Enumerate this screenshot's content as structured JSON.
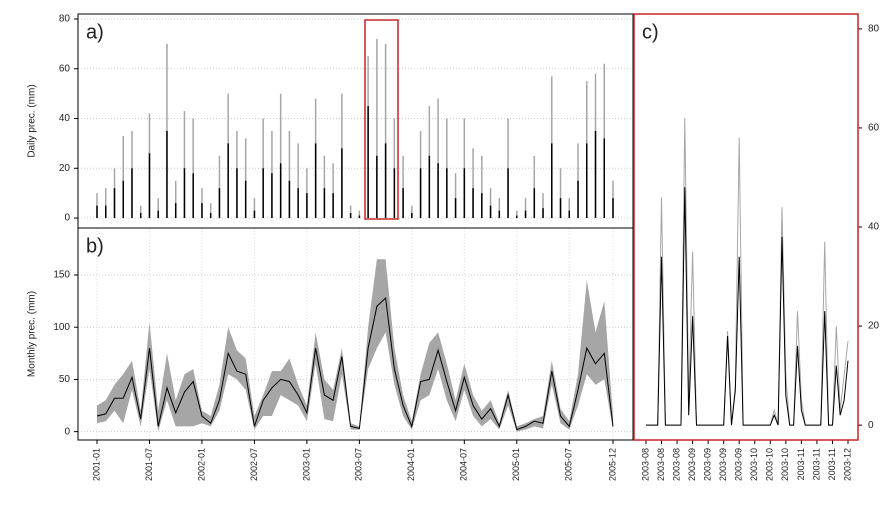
{
  "chart_data": [
    {
      "type": "spikes",
      "label": "a)",
      "ylabel": "Daily prec. (mm)",
      "categories": [
        null,
        null,
        null,
        null,
        null,
        null,
        null,
        null,
        null,
        null,
        null,
        null,
        null,
        null,
        null,
        null,
        null,
        null,
        null,
        null,
        null,
        null,
        null,
        null,
        null,
        null,
        null,
        null,
        null,
        null,
        null,
        null,
        null,
        null,
        null,
        null,
        null,
        null,
        null,
        null,
        null,
        null,
        null,
        null,
        null,
        null,
        null,
        null,
        null,
        null,
        null,
        null,
        null,
        null,
        null,
        null,
        null,
        null,
        null,
        null
      ],
      "series": [
        {
          "color": "#a6a6a6",
          "values": [
            10,
            12,
            20,
            33,
            35,
            5,
            42,
            8,
            70,
            15,
            43,
            40,
            12,
            6,
            25,
            50,
            35,
            32,
            8,
            40,
            35,
            50,
            35,
            30,
            20,
            48,
            25,
            22,
            50,
            5,
            3,
            65,
            72,
            70,
            40,
            25,
            5,
            35,
            45,
            48,
            40,
            18,
            40,
            28,
            25,
            12,
            8,
            40,
            3,
            8,
            25,
            10,
            57,
            20,
            8,
            30,
            55,
            58,
            62,
            15
          ]
        },
        {
          "color": "#000000",
          "values": [
            5,
            5,
            12,
            15,
            20,
            2,
            26,
            3,
            35,
            6,
            20,
            18,
            6,
            2,
            12,
            30,
            20,
            15,
            3,
            20,
            18,
            22,
            15,
            12,
            10,
            30,
            12,
            10,
            28,
            2,
            1,
            45,
            25,
            30,
            20,
            12,
            2,
            20,
            25,
            22,
            20,
            8,
            20,
            12,
            10,
            5,
            3,
            20,
            1,
            3,
            12,
            4,
            30,
            8,
            3,
            15,
            30,
            35,
            32,
            8
          ]
        }
      ],
      "ylim": [
        -4,
        82
      ],
      "yticks": [
        0,
        20,
        40,
        60,
        80
      ],
      "grid": true,
      "y_axis_side": "left"
    },
    {
      "type": "band-line",
      "label": "b)",
      "ylabel": "Monthly prec. (mm)",
      "categories": [
        "2001-01",
        null,
        null,
        null,
        null,
        null,
        "2001-07",
        null,
        null,
        null,
        null,
        null,
        "2002-01",
        null,
        null,
        null,
        null,
        null,
        "2002-07",
        null,
        null,
        null,
        null,
        null,
        "2003-01",
        null,
        null,
        null,
        null,
        null,
        "2003-07",
        null,
        null,
        null,
        null,
        null,
        "2004-01",
        null,
        null,
        null,
        null,
        null,
        "2004-07",
        null,
        null,
        null,
        null,
        null,
        "2005-01",
        null,
        null,
        null,
        null,
        null,
        "2005-07",
        null,
        null,
        null,
        null,
        "2005-12"
      ],
      "band": {
        "color": "#a6a6a6",
        "low": [
          8,
          10,
          20,
          8,
          40,
          5,
          60,
          0,
          30,
          5,
          5,
          5,
          8,
          5,
          20,
          55,
          50,
          40,
          2,
          15,
          15,
          35,
          30,
          25,
          10,
          65,
          12,
          10,
          55,
          2,
          2,
          60,
          80,
          95,
          45,
          15,
          2,
          30,
          35,
          60,
          30,
          10,
          40,
          15,
          5,
          12,
          2,
          25,
          0,
          2,
          5,
          3,
          45,
          8,
          2,
          25,
          55,
          45,
          50,
          2
        ],
        "high": [
          25,
          30,
          45,
          55,
          68,
          20,
          105,
          20,
          75,
          30,
          55,
          60,
          20,
          15,
          45,
          100,
          78,
          70,
          15,
          35,
          58,
          58,
          70,
          45,
          25,
          95,
          50,
          40,
          80,
          8,
          5,
          100,
          165,
          165,
          80,
          35,
          10,
          55,
          85,
          95,
          65,
          30,
          65,
          35,
          20,
          30,
          8,
          40,
          5,
          8,
          12,
          15,
          68,
          22,
          10,
          55,
          145,
          95,
          125,
          15
        ]
      },
      "series": [
        {
          "color": "#000000",
          "values": [
            15,
            17,
            32,
            32,
            52,
            12,
            80,
            5,
            42,
            18,
            38,
            48,
            15,
            8,
            30,
            75,
            58,
            55,
            5,
            30,
            42,
            50,
            48,
            35,
            18,
            80,
            35,
            30,
            72,
            5,
            3,
            80,
            120,
            128,
            60,
            25,
            5,
            48,
            50,
            78,
            48,
            20,
            52,
            25,
            12,
            22,
            5,
            35,
            2,
            5,
            10,
            8,
            58,
            15,
            5,
            40,
            80,
            65,
            75,
            5
          ]
        }
      ],
      "ylim": [
        -8,
        195
      ],
      "yticks": [
        0,
        50,
        100,
        150
      ],
      "grid": true,
      "y_axis_side": "left"
    },
    {
      "type": "line",
      "label": "c)",
      "categories": [
        "2003-08",
        null,
        null,
        null,
        "2003-08",
        null,
        null,
        null,
        "2003-08",
        null,
        null,
        null,
        "2003-09",
        null,
        null,
        null,
        "2003-09",
        null,
        null,
        null,
        "2003-09",
        null,
        null,
        null,
        "2003-09",
        null,
        null,
        null,
        "2003-10",
        null,
        null,
        null,
        "2003-10",
        null,
        null,
        null,
        "2003-10",
        null,
        null,
        null,
        "2003-11",
        null,
        null,
        null,
        "2003-11",
        null,
        null,
        null,
        "2003-11",
        null,
        null,
        null,
        "2003-12"
      ],
      "series": [
        {
          "color": "#a6a6a6",
          "values": [
            0,
            0,
            0,
            0,
            46,
            0,
            0,
            0,
            0,
            0,
            62,
            5,
            35,
            0,
            0,
            0,
            0,
            0,
            0,
            0,
            0,
            19,
            0,
            8,
            58,
            0,
            0,
            0,
            0,
            0,
            0,
            0,
            0,
            3,
            0,
            44,
            10,
            0,
            0,
            23,
            5,
            0,
            0,
            0,
            0,
            0,
            37,
            0,
            0,
            20,
            3,
            10,
            17
          ]
        },
        {
          "color": "#000000",
          "values": [
            0,
            0,
            0,
            0,
            34,
            0,
            0,
            0,
            0,
            0,
            48,
            2,
            22,
            0,
            0,
            0,
            0,
            0,
            0,
            0,
            0,
            18,
            0,
            7,
            34,
            0,
            0,
            0,
            0,
            0,
            0,
            0,
            0,
            2,
            0,
            38,
            6,
            0,
            0,
            16,
            3,
            0,
            0,
            0,
            0,
            0,
            23,
            0,
            0,
            12,
            2,
            5,
            13
          ]
        }
      ],
      "ylim": [
        -3,
        83
      ],
      "yticks": [
        0,
        20,
        40,
        60,
        80
      ],
      "grid": false,
      "y_axis_side": "right"
    }
  ]
}
